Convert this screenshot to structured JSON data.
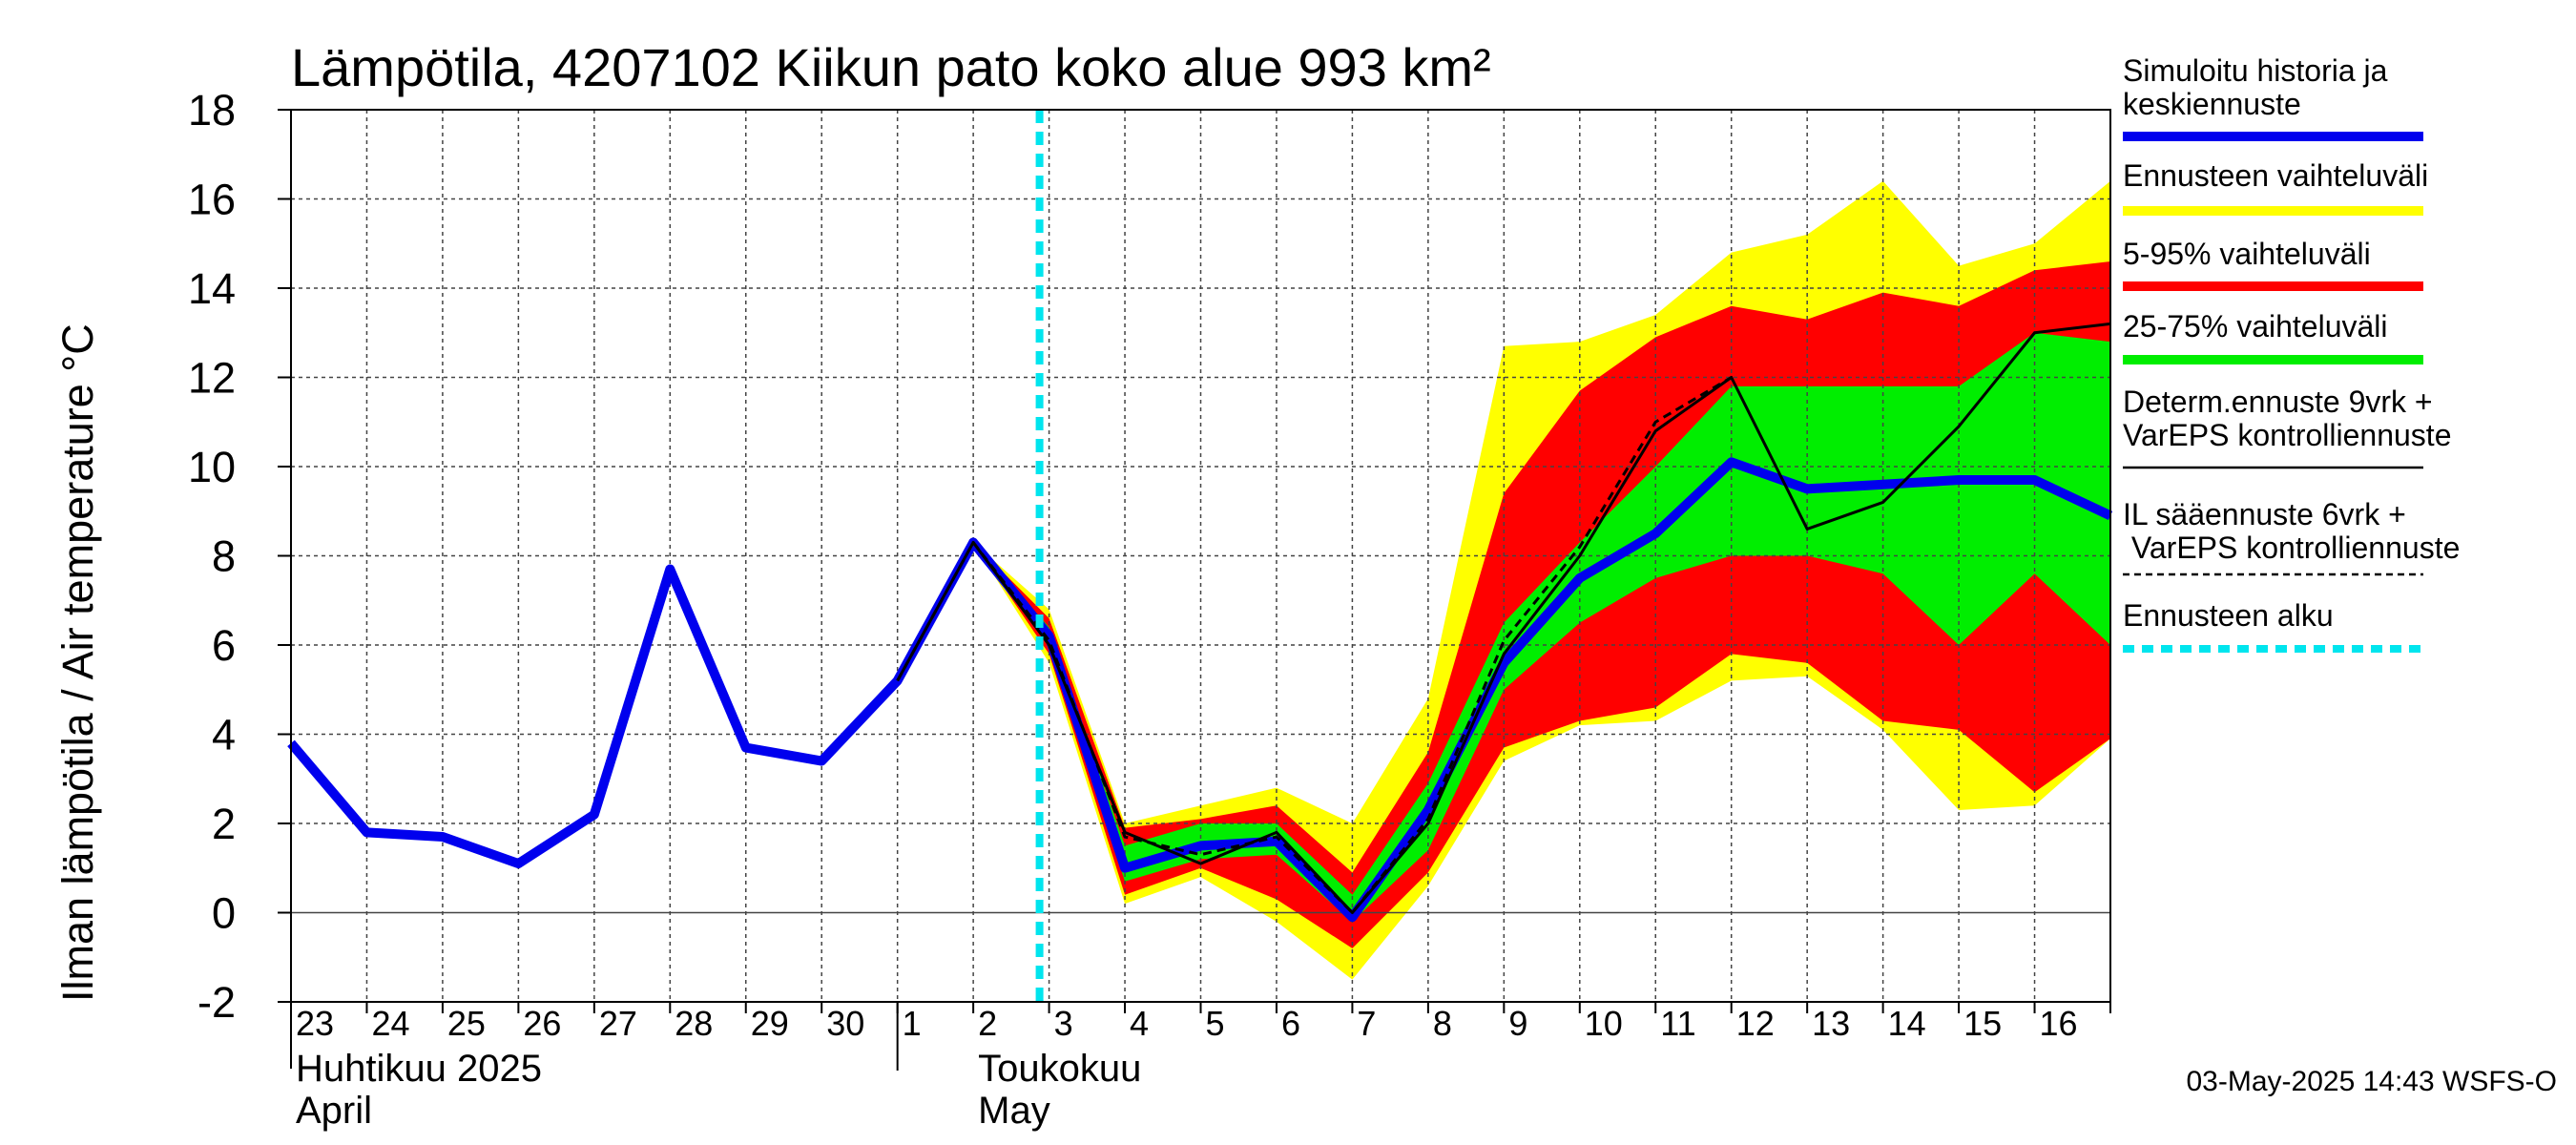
{
  "chart_data": {
    "type": "line",
    "title": "Lämpötila, 4207102 Kiikun pato koko alue 993 km²",
    "ylabel": "Ilman lämpötila / Air temperature    °C",
    "ylim": [
      -2,
      18
    ],
    "yticks": [
      -2,
      0,
      2,
      4,
      6,
      8,
      10,
      12,
      14,
      16,
      18
    ],
    "xlim": [
      0,
      24
    ],
    "day_labels": [
      "23",
      "24",
      "25",
      "26",
      "27",
      "28",
      "29",
      "30",
      "1",
      "2",
      "3",
      "4",
      "5",
      "6",
      "7",
      "8",
      "9",
      "10",
      "11",
      "12",
      "13",
      "14",
      "15",
      "16"
    ],
    "months": [
      {
        "fi": "Huhtikuu  2025",
        "en": "April"
      },
      {
        "fi": "Toukokuu",
        "en": "May"
      }
    ],
    "forecast_start": 10,
    "series": [
      {
        "name": "Ennusteen vaihteluväli",
        "color": "#ffff00",
        "x": [
          9,
          10,
          11,
          12,
          13,
          14,
          15,
          16,
          17,
          18,
          19,
          20,
          21,
          22,
          23,
          24
        ],
        "upper": [
          8.3,
          6.8,
          2.0,
          2.4,
          2.8,
          2.0,
          4.8,
          12.7,
          12.8,
          13.4,
          14.8,
          15.2,
          16.4,
          14.5,
          15.0,
          16.4
        ],
        "lower": [
          8.3,
          5.6,
          0.2,
          0.8,
          -0.2,
          -1.5,
          0.6,
          3.4,
          4.2,
          4.3,
          5.2,
          5.3,
          4.1,
          2.3,
          2.4,
          3.9
        ]
      },
      {
        "name": "5-95% vaihteluväli",
        "color": "#ff0000",
        "x": [
          9,
          10,
          11,
          12,
          13,
          14,
          15,
          16,
          17,
          18,
          19,
          20,
          21,
          22,
          23,
          24
        ],
        "upper": [
          8.3,
          6.6,
          1.9,
          2.1,
          2.4,
          0.9,
          3.6,
          9.4,
          11.7,
          12.9,
          13.6,
          13.3,
          13.9,
          13.6,
          14.4,
          14.6
        ],
        "lower": [
          8.3,
          5.8,
          0.4,
          1.0,
          0.3,
          -0.8,
          0.9,
          3.7,
          4.3,
          4.6,
          5.8,
          5.6,
          4.3,
          4.1,
          2.7,
          3.9
        ]
      },
      {
        "name": "25-75% vaihteluväli",
        "color": "#00ee00",
        "x": [
          9,
          10,
          11,
          12,
          13,
          14,
          15,
          16,
          17,
          18,
          19,
          20,
          21,
          22,
          23,
          24
        ],
        "upper": [
          8.3,
          6.4,
          1.5,
          2.0,
          2.0,
          0.4,
          2.9,
          6.5,
          8.3,
          10.0,
          11.8,
          11.8,
          11.8,
          11.8,
          13.0,
          12.8
        ],
        "lower": [
          8.3,
          6.0,
          0.7,
          1.2,
          1.3,
          -0.2,
          1.4,
          5.0,
          6.5,
          7.5,
          8.0,
          8.0,
          7.6,
          6.0,
          7.6,
          6.0
        ]
      },
      {
        "name": "Simuloitu historia ja keskiennuste",
        "color": "#0000ee",
        "x": [
          0,
          1,
          2,
          3,
          4,
          5,
          6,
          7,
          8,
          9,
          10,
          11,
          12,
          13,
          14,
          15,
          16,
          17,
          18,
          19,
          20,
          21,
          22,
          23,
          24
        ],
        "y": [
          3.8,
          1.8,
          1.7,
          1.1,
          2.2,
          7.7,
          3.7,
          3.4,
          5.2,
          8.3,
          6.2,
          1.0,
          1.5,
          1.6,
          -0.1,
          2.3,
          5.6,
          7.5,
          8.5,
          10.1,
          9.5,
          9.6,
          9.7,
          9.7,
          8.9
        ]
      },
      {
        "name": "Determ.ennuste 9vrk + VarEPS kontrolliennuste",
        "color": "#000000",
        "x": [
          8,
          9,
          10,
          11,
          12,
          13,
          14,
          15,
          16,
          17,
          18,
          19,
          20,
          21,
          22,
          23,
          24
        ],
        "y": [
          5.2,
          8.3,
          6.0,
          1.8,
          1.1,
          1.8,
          0.0,
          2.0,
          5.8,
          8.0,
          10.8,
          12.0,
          8.6,
          9.2,
          10.9,
          13.0,
          13.2
        ]
      },
      {
        "name": "IL sääennuste 6vrk  + VarEPS kontrolliennuste",
        "color": "#000000",
        "x": [
          8,
          9,
          10,
          11,
          12,
          13,
          14,
          15,
          16,
          17,
          18,
          19
        ],
        "y": [
          5.2,
          8.3,
          6.1,
          1.7,
          1.3,
          1.7,
          0.0,
          2.1,
          6.1,
          8.2,
          11.0,
          12.0
        ]
      }
    ],
    "legend": [
      {
        "label": "Simuloitu historia ja keskiennuste",
        "color": "#0000ee",
        "style": "thick"
      },
      {
        "label": "Ennusteen vaihteluväli",
        "color": "#ffff00",
        "style": "thick"
      },
      {
        "label": "5-95% vaihteluväli",
        "color": "#ff0000",
        "style": "thick"
      },
      {
        "label": "25-75% vaihteluväli",
        "color": "#00ee00",
        "style": "thick"
      },
      {
        "label": "Determ.ennuste 9vrk + VarEPS kontrolliennuste",
        "color": "#000000",
        "style": "thin"
      },
      {
        "label": "IL sääennuste 6vrk  + VarEPS kontrolliennuste",
        "color": "#000000",
        "style": "dashed"
      },
      {
        "label": "Ennusteen alku",
        "color": "#00e5ee",
        "style": "dotted"
      }
    ],
    "timestamp": "03-May-2025 14:43 WSFS-O"
  }
}
